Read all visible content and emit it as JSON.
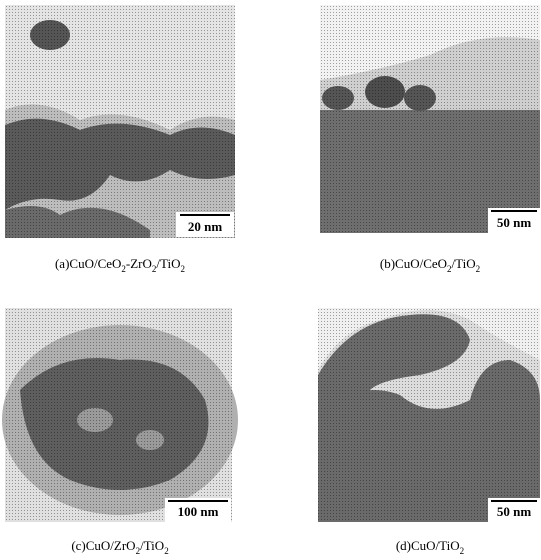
{
  "panels": [
    {
      "scale_bar": "20 nm",
      "caption": [
        {
          "t": "(a)CuO/CeO"
        },
        {
          "t": "2",
          "sub": true
        },
        {
          "t": "-ZrO"
        },
        {
          "t": "2",
          "sub": true
        },
        {
          "t": "/TiO"
        },
        {
          "t": "2",
          "sub": true
        }
      ]
    },
    {
      "scale_bar": "50 nm",
      "caption": [
        {
          "t": "(b)CuO/CeO"
        },
        {
          "t": "2",
          "sub": true
        },
        {
          "t": "/TiO"
        },
        {
          "t": "2",
          "sub": true
        }
      ]
    },
    {
      "scale_bar": "100 nm",
      "caption": [
        {
          "t": "(c)CuO/ZrO"
        },
        {
          "t": "2",
          "sub": true
        },
        {
          "t": "/TiO"
        },
        {
          "t": "2",
          "sub": true
        }
      ]
    },
    {
      "scale_bar": "50 nm",
      "caption": [
        {
          "t": "(d)CuO/TiO"
        },
        {
          "t": "2",
          "sub": true
        }
      ]
    }
  ]
}
